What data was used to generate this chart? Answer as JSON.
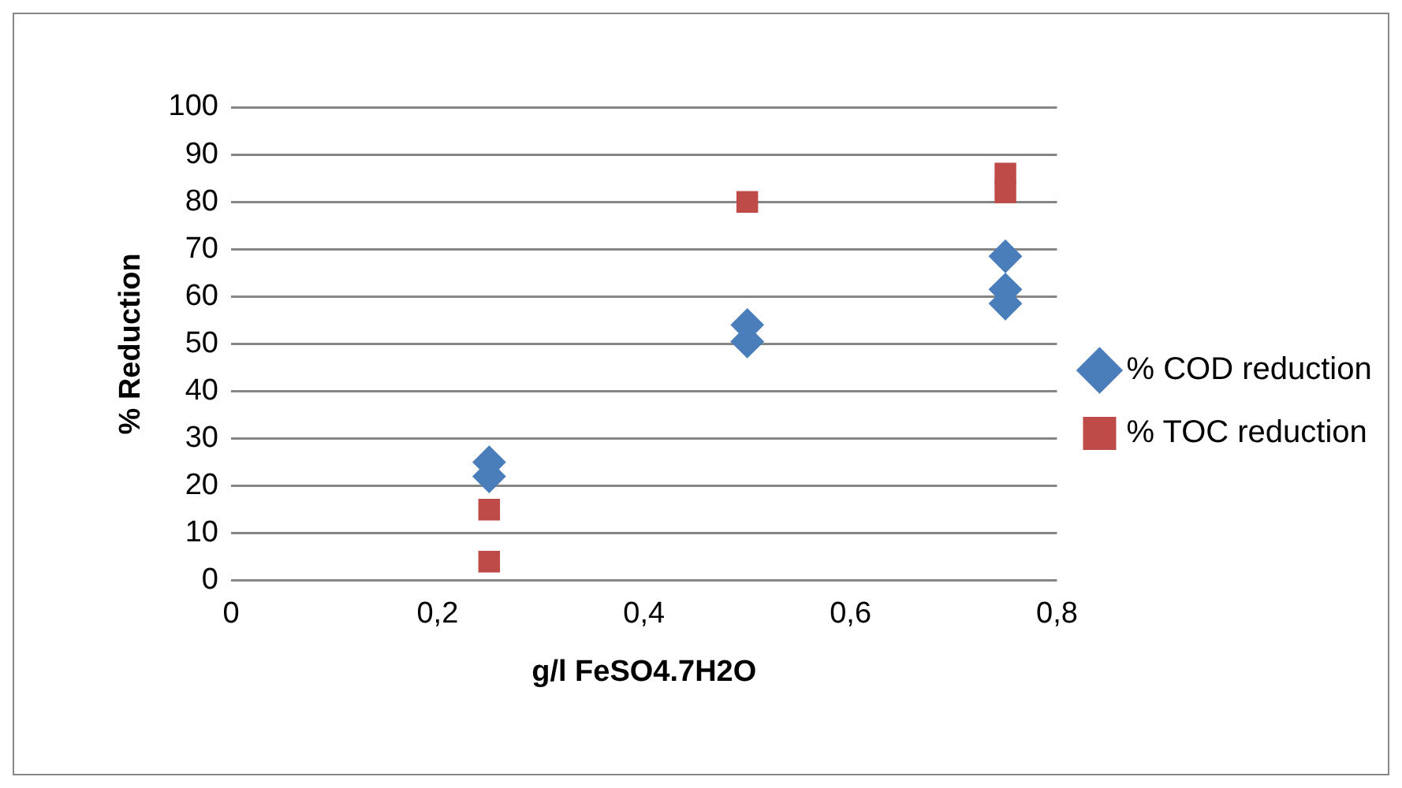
{
  "chart_data": {
    "type": "scatter",
    "xlabel": "g/l FeSO4.7H2O",
    "ylabel": "% Reduction",
    "xlim": [
      0,
      0.8
    ],
    "xticks": [
      {
        "value": 0,
        "label": "0"
      },
      {
        "value": 0.2,
        "label": "0,2"
      },
      {
        "value": 0.4,
        "label": "0,4"
      },
      {
        "value": 0.6,
        "label": "0,6"
      },
      {
        "value": 0.8,
        "label": "0,8"
      }
    ],
    "ylim": [
      0,
      100
    ],
    "yticks": [
      0,
      10,
      20,
      30,
      40,
      50,
      60,
      70,
      80,
      90,
      100
    ],
    "grid": "y",
    "legend": "right",
    "series": [
      {
        "name": "% COD reduction",
        "color": "#4a7ebb",
        "marker": "diamond",
        "x": [
          0.25,
          0.25,
          0.5,
          0.5,
          0.75,
          0.75,
          0.75
        ],
        "values": [
          25,
          22,
          54,
          50.5,
          68.5,
          61.5,
          58.5
        ]
      },
      {
        "name": "% TOC reduction",
        "color": "#be4b48",
        "marker": "square",
        "x": [
          0.25,
          0.25,
          0.5,
          0.75,
          0.75
        ],
        "values": [
          15,
          4,
          80,
          86,
          82
        ]
      }
    ]
  }
}
